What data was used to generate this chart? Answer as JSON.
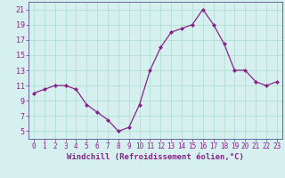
{
  "x": [
    0,
    1,
    2,
    3,
    4,
    5,
    6,
    7,
    8,
    9,
    10,
    11,
    12,
    13,
    14,
    15,
    16,
    17,
    18,
    19,
    20,
    21,
    22,
    23
  ],
  "y": [
    10,
    10.5,
    11,
    11,
    10.5,
    8.5,
    7.5,
    6.5,
    5,
    5.5,
    8.5,
    13,
    16,
    18,
    18.5,
    19,
    21,
    19,
    16.5,
    13,
    13,
    11.5,
    11,
    11.5
  ],
  "line_color": "#882288",
  "marker": "D",
  "marker_size": 2,
  "bg_color": "#d6f0f0",
  "grid_color": "#aaddcc",
  "xlabel": "Windchill (Refroidissement éolien,°C)",
  "yticks": [
    5,
    7,
    9,
    11,
    13,
    15,
    17,
    19,
    21
  ],
  "xticks": [
    0,
    1,
    2,
    3,
    4,
    5,
    6,
    7,
    8,
    9,
    10,
    11,
    12,
    13,
    14,
    15,
    16,
    17,
    18,
    19,
    20,
    21,
    22,
    23
  ],
  "ylim": [
    4,
    22
  ],
  "xlim": [
    -0.5,
    23.5
  ],
  "spine_color": "#666699",
  "tick_color": "#882288",
  "label_fontsize": 5.5,
  "xlabel_fontsize": 6.5
}
